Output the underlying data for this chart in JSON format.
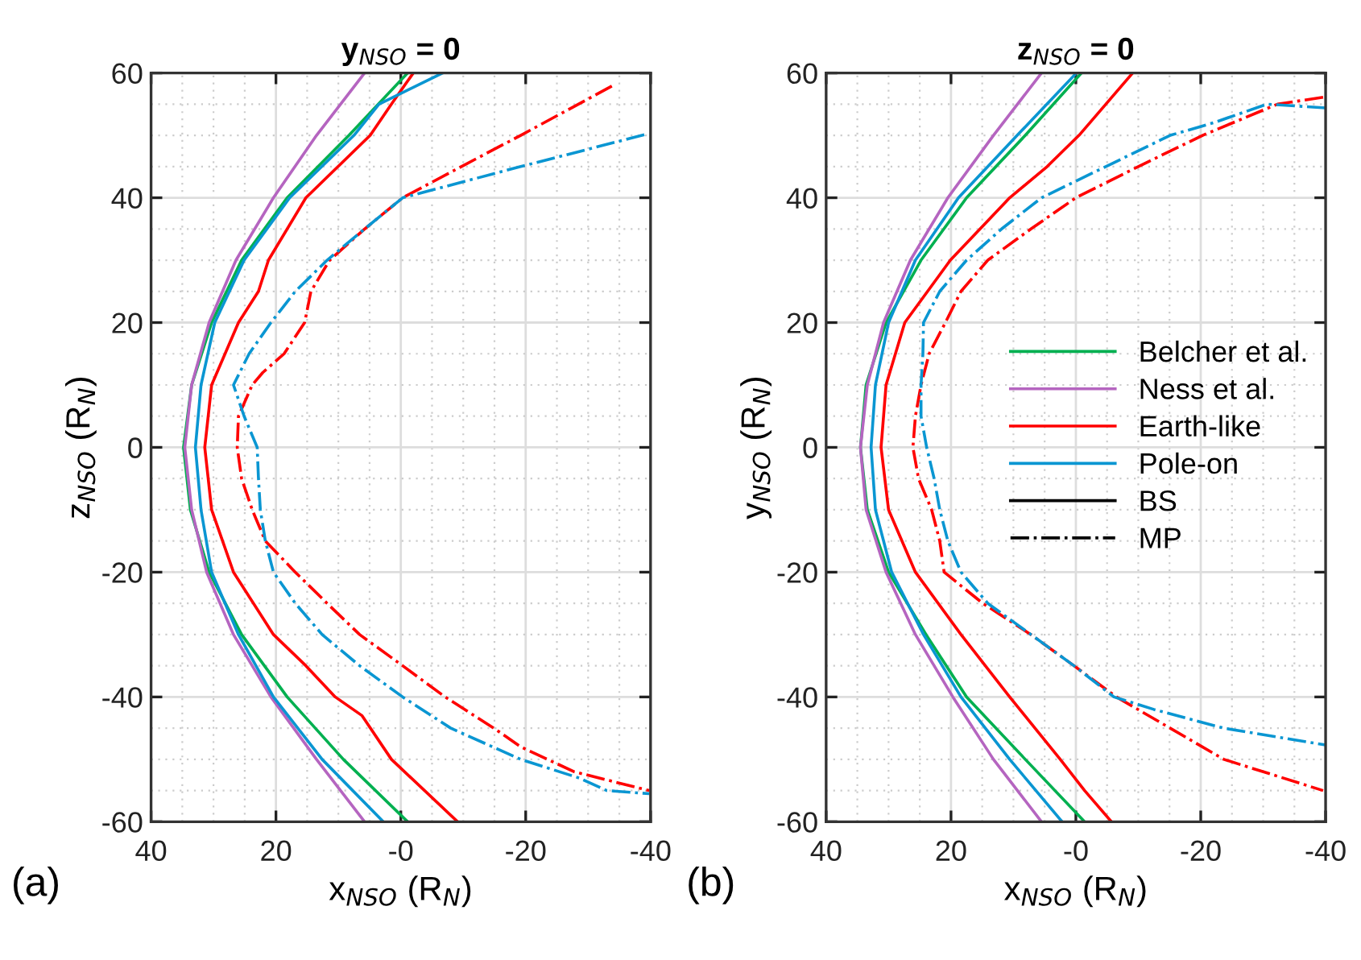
{
  "chart_data": [
    {
      "type": "line",
      "title": "y$_{NSO}$ = 0",
      "xlabel": "x$_{NSO}$ (R$_{N}$)",
      "ylabel": "z$_{NSO}$ (R$_{N}$)",
      "xlim": [
        40,
        -40
      ],
      "xticks": [
        40,
        20,
        {
          "value": 0,
          "label": "-0"
        },
        -20,
        -40
      ],
      "ylim": [
        -60,
        60
      ],
      "yticks": [
        -60,
        -40,
        -20,
        0,
        20,
        40,
        60
      ],
      "grid": true,
      "legend": false,
      "annotations": [
        "(a)"
      ],
      "series": [
        {
          "color": "#00b050",
          "line_style": "solid",
          "x": [
            -1.1,
            8.3,
            18.2,
            25.5,
            30.3,
            33.5,
            34.8,
            33.7,
            30.7,
            25.5,
            18.2,
            9.2,
            -1.1
          ],
          "values": [
            60,
            50,
            40,
            30,
            20,
            10,
            0,
            -10,
            -20,
            -30,
            -40,
            -50,
            -60
          ]
        },
        {
          "color": "#b565c0",
          "line_style": "solid",
          "x": [
            5.8,
            13.5,
            20.4,
            26.4,
            30.7,
            33.5,
            34.6,
            33.5,
            31.1,
            26.8,
            20.8,
            13.5,
            5.8
          ],
          "values": [
            60,
            50,
            40,
            30,
            20,
            10,
            0,
            -10,
            -20,
            -30,
            -40,
            -50,
            -60
          ]
        },
        {
          "color": "#ff0000",
          "line_style": "solid",
          "x": [
            -2,
            1.5,
            4.9,
            15.2,
            21.2,
            22.8,
            26,
            30.3,
            31.4,
            30.3,
            26.8,
            20.4,
            15.2,
            10.5,
            6.2,
            1.5,
            -9.1
          ],
          "values": [
            60,
            55,
            50,
            40,
            30,
            25,
            20,
            10,
            0,
            -10,
            -20,
            -30,
            -35,
            -40,
            -43,
            -50,
            -60
          ]
        },
        {
          "color": "#0a96d2",
          "line_style": "solid",
          "x": [
            -6.7,
            3.5,
            7.5,
            17.8,
            25.1,
            29.8,
            32,
            32.9,
            32,
            30.3,
            26,
            20.4,
            12.6,
            2.8
          ],
          "values": [
            60,
            55,
            50,
            40,
            30,
            20,
            10,
            0,
            -10,
            -20,
            -30,
            -40,
            -50,
            -60
          ]
        },
        {
          "color": "#ff0000",
          "line_style": "dashdot",
          "x": [
            -33.8,
            -19.2,
            -9.7,
            -0.3,
            5.8,
            11.4,
            14.4,
            15.4,
            18.7,
            22.1,
            23.8,
            26,
            26.2,
            25.5,
            23.8,
            21.7,
            16.9,
            11.8,
            6.6,
            -0.3,
            -7.1,
            -14.9,
            -19.2,
            -27.8,
            -39.8
          ],
          "values": [
            57.9,
            50,
            45,
            40,
            35,
            30,
            25,
            20,
            15,
            12,
            10,
            5,
            0,
            -5,
            -10,
            -15,
            -20,
            -25,
            -30,
            -35,
            -40,
            -45,
            -48,
            -52,
            -55
          ]
        },
        {
          "color": "#0a96d2",
          "line_style": "dashdot",
          "x": [
            -39,
            -19.2,
            -0.3,
            5.8,
            11.8,
            16.9,
            20.8,
            24.3,
            26.8,
            25.1,
            23,
            22.8,
            22.5,
            21.7,
            20.4,
            16.9,
            12.6,
            6.6,
            -0.3,
            -8,
            -19.2,
            -28.6,
            -33,
            -39.8
          ],
          "values": [
            50.1,
            45,
            40,
            35,
            30,
            25,
            20,
            15,
            10,
            5,
            0,
            -5,
            -10,
            -15,
            -20,
            -25,
            -30,
            -35,
            -40,
            -45,
            -50,
            -53,
            -55,
            -55.5
          ]
        }
      ]
    },
    {
      "type": "line",
      "title": "z$_{NSO}$ = 0",
      "xlabel": "x$_{NSO}$ (R$_{N}$)",
      "ylabel": "y$_{NSO}$ (R$_{N}$)",
      "xlim": [
        40,
        -40
      ],
      "xticks": [
        40,
        20,
        {
          "value": 0,
          "label": "-0"
        },
        -20,
        -40
      ],
      "ylim": [
        -60,
        60
      ],
      "yticks": [
        -60,
        -40,
        -20,
        0,
        20,
        40,
        60
      ],
      "grid": true,
      "legend": "right",
      "annotations": [
        "(b)"
      ],
      "series": [
        {
          "name": "Belcher et al.",
          "color": "#00b050",
          "line_style": "solid",
          "x": [
            -0.9,
            8.1,
            17.5,
            24.8,
            30.4,
            33.6,
            34.5,
            33.4,
            30,
            24,
            17.5,
            8.1,
            -1.4
          ],
          "values": [
            60,
            50,
            40,
            30,
            20,
            10,
            0,
            -10,
            -20,
            -30,
            -40,
            -50,
            -60
          ]
        },
        {
          "name": "Ness et al.",
          "color": "#b565c0",
          "line_style": "solid",
          "x": [
            5.5,
            13.2,
            20.5,
            26.5,
            30.8,
            33.4,
            34.5,
            33.6,
            30.4,
            25.7,
            19.7,
            13.2,
            5.5
          ],
          "values": [
            60,
            50,
            40,
            30,
            20,
            10,
            0,
            -10,
            -20,
            -30,
            -40,
            -50,
            -60
          ]
        },
        {
          "name": "Earth-like",
          "color": "#ff0000",
          "line_style": "solid",
          "x": [
            -9.1,
            -4.8,
            -0.5,
            4.6,
            10.6,
            20.1,
            27.4,
            30.4,
            31.2,
            30,
            25.7,
            18.4,
            10.6,
            2.5,
            -1.4,
            -5.7
          ],
          "values": [
            60,
            55,
            50,
            45,
            40,
            30,
            20,
            10,
            0,
            -10,
            -20,
            -30,
            -40,
            -50,
            -55,
            -60
          ]
        },
        {
          "name": "Pole-on",
          "color": "#0a96d2",
          "line_style": "solid",
          "x": [
            -0.1,
            9.4,
            18.8,
            25.7,
            30,
            32.1,
            32.8,
            32.1,
            29.5,
            24.4,
            18.4,
            10.6,
            2.2
          ],
          "values": [
            60,
            50,
            40,
            30,
            20,
            10,
            0,
            -10,
            -20,
            -30,
            -40,
            -50,
            -60
          ]
        },
        {
          "color": "#ff0000",
          "line_style": "dashdot",
          "x": [
            -39.6,
            -32.3,
            -20.3,
            -10,
            0,
            7.2,
            14.1,
            18.4,
            20.9,
            23.5,
            24.8,
            25.7,
            26.1,
            25.2,
            23.1,
            21.8,
            21.1,
            14.9,
            7.2,
            0.3,
            -6.5,
            -15.1,
            -23.7,
            -39.6
          ],
          "values": [
            56.1,
            55,
            50,
            45,
            40,
            35,
            30,
            25,
            20,
            15,
            10,
            5,
            0,
            -5,
            -10,
            -15,
            -20,
            -25,
            -30,
            -35,
            -40,
            -45,
            -50,
            -55
          ]
        },
        {
          "color": "#0a96d2",
          "line_style": "dashdot",
          "x": [
            -40,
            -30.6,
            -22,
            -15.1,
            -4.8,
            5.5,
            11.9,
            17.5,
            21.8,
            24.4,
            24.5,
            24.8,
            24.8,
            23.9,
            22.7,
            21.8,
            20.5,
            18.4,
            14.1,
            7.2,
            0.3,
            -6.1,
            -12.5,
            -23.7,
            -40
          ],
          "values": [
            54.4,
            55,
            52,
            50,
            45,
            40,
            35,
            30,
            25,
            20,
            15,
            10,
            5,
            0,
            -5,
            -10,
            -15,
            -20,
            -25,
            -30,
            -35,
            -40,
            -42,
            -45,
            -47.7
          ]
        },
        {
          "name": "BS",
          "color": "#000000",
          "line_style": "solid"
        },
        {
          "name": "MP",
          "color": "#000000",
          "line_style": "dashdot"
        }
      ]
    }
  ]
}
